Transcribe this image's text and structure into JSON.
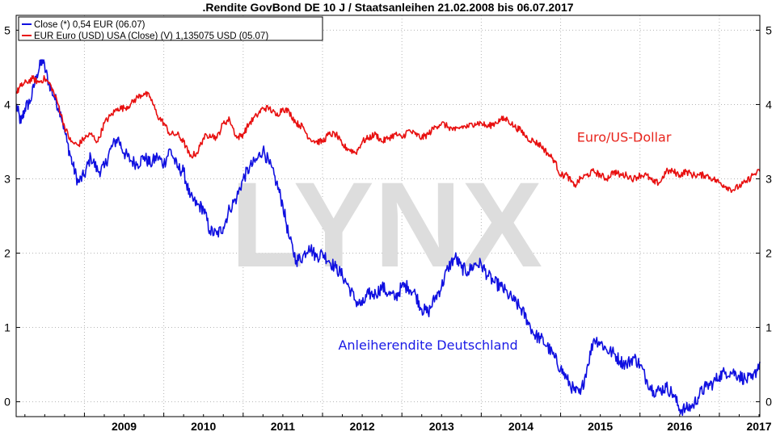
{
  "chart_data": {
    "type": "line",
    "title": ".Rendite GovBond DE 10 J / Staatsanleihen 21.02.2008 bis 06.07.2017",
    "xlim": [
      2008.14,
      2017.51
    ],
    "ylim": [
      -0.2,
      5.2
    ],
    "grid": true,
    "legend_position": "top-left",
    "x_tick_labels": [
      "2009",
      "2010",
      "2011",
      "2012",
      "2013",
      "2014",
      "2015",
      "2016",
      "2017"
    ],
    "x_tick_values": [
      2009,
      2010,
      2011,
      2012,
      2013,
      2014,
      2015,
      2016,
      2017
    ],
    "y_tick_labels": [
      "0",
      "1",
      "2",
      "3",
      "4",
      "5"
    ],
    "y_tick_values": [
      0,
      1,
      2,
      3,
      4,
      5
    ],
    "watermark": "LYNX",
    "annotations": [
      {
        "text": "Euro/US-Dollar",
        "color": "#e8241c",
        "x": 2015.8,
        "y": 3.5
      },
      {
        "text": "Anleiherendite Deutschland",
        "color": "#1a1ae6",
        "x": 2013.33,
        "y": 0.7
      }
    ],
    "series": [
      {
        "name": "Close (*) 0,54 EUR (06.07)",
        "color": "#1010e0",
        "x": [
          2008.14,
          2008.2,
          2008.25,
          2008.32,
          2008.4,
          2008.47,
          2008.55,
          2008.62,
          2008.7,
          2008.78,
          2008.85,
          2008.92,
          2009.0,
          2009.08,
          2009.17,
          2009.25,
          2009.33,
          2009.42,
          2009.5,
          2009.58,
          2009.67,
          2009.75,
          2009.83,
          2009.92,
          2010.0,
          2010.08,
          2010.17,
          2010.25,
          2010.33,
          2010.42,
          2010.5,
          2010.58,
          2010.67,
          2010.75,
          2010.83,
          2010.92,
          2011.0,
          2011.08,
          2011.17,
          2011.25,
          2011.33,
          2011.42,
          2011.5,
          2011.58,
          2011.67,
          2011.75,
          2011.83,
          2011.92,
          2012.0,
          2012.08,
          2012.17,
          2012.25,
          2012.33,
          2012.42,
          2012.5,
          2012.58,
          2012.67,
          2012.75,
          2012.83,
          2012.92,
          2013.0,
          2013.08,
          2013.17,
          2013.25,
          2013.33,
          2013.42,
          2013.5,
          2013.58,
          2013.67,
          2013.75,
          2013.83,
          2013.92,
          2014.0,
          2014.08,
          2014.17,
          2014.25,
          2014.33,
          2014.42,
          2014.5,
          2014.58,
          2014.67,
          2014.75,
          2014.83,
          2014.92,
          2015.0,
          2015.08,
          2015.17,
          2015.25,
          2015.33,
          2015.42,
          2015.5,
          2015.58,
          2015.67,
          2015.75,
          2015.83,
          2015.92,
          2016.0,
          2016.08,
          2016.17,
          2016.25,
          2016.33,
          2016.42,
          2016.5,
          2016.58,
          2016.67,
          2016.75,
          2016.83,
          2016.92,
          2017.0,
          2017.08,
          2017.17,
          2017.25,
          2017.33,
          2017.42,
          2017.51
        ],
        "values": [
          4.0,
          3.75,
          3.95,
          4.05,
          4.4,
          4.6,
          4.3,
          4.1,
          3.9,
          3.5,
          3.2,
          2.95,
          3.05,
          3.3,
          3.1,
          3.15,
          3.4,
          3.55,
          3.35,
          3.25,
          3.2,
          3.3,
          3.2,
          3.3,
          3.2,
          3.4,
          3.15,
          3.1,
          2.75,
          2.65,
          2.6,
          2.3,
          2.25,
          2.35,
          2.6,
          2.75,
          3.0,
          3.15,
          3.25,
          3.4,
          3.2,
          2.95,
          2.65,
          2.2,
          1.9,
          1.95,
          2.1,
          1.95,
          2.0,
          1.9,
          1.8,
          1.7,
          1.55,
          1.35,
          1.3,
          1.45,
          1.45,
          1.55,
          1.45,
          1.4,
          1.55,
          1.55,
          1.45,
          1.25,
          1.2,
          1.4,
          1.55,
          1.8,
          1.95,
          1.8,
          1.75,
          1.85,
          1.85,
          1.7,
          1.6,
          1.55,
          1.45,
          1.35,
          1.25,
          1.1,
          0.9,
          0.85,
          0.75,
          0.6,
          0.45,
          0.3,
          0.15,
          0.1,
          0.45,
          0.85,
          0.8,
          0.7,
          0.65,
          0.55,
          0.5,
          0.6,
          0.5,
          0.3,
          0.15,
          0.15,
          0.2,
          0.1,
          -0.1,
          -0.1,
          -0.05,
          0.1,
          0.2,
          0.25,
          0.35,
          0.4,
          0.4,
          0.35,
          0.3,
          0.3,
          0.54
        ]
      },
      {
        "name": "EUR Euro (USD) USA (Close) (V) 1,135075 USD (05.07)",
        "color": "#e81010",
        "x": [
          2008.14,
          2008.2,
          2008.27,
          2008.35,
          2008.42,
          2008.5,
          2008.58,
          2008.67,
          2008.75,
          2008.83,
          2008.92,
          2009.0,
          2009.08,
          2009.17,
          2009.25,
          2009.33,
          2009.42,
          2009.5,
          2009.58,
          2009.67,
          2009.75,
          2009.83,
          2009.92,
          2010.0,
          2010.08,
          2010.17,
          2010.25,
          2010.33,
          2010.42,
          2010.5,
          2010.58,
          2010.67,
          2010.75,
          2010.83,
          2010.92,
          2011.0,
          2011.08,
          2011.17,
          2011.25,
          2011.33,
          2011.42,
          2011.5,
          2011.58,
          2011.67,
          2011.75,
          2011.83,
          2011.92,
          2012.0,
          2012.08,
          2012.17,
          2012.25,
          2012.33,
          2012.42,
          2012.5,
          2012.58,
          2012.67,
          2012.75,
          2012.83,
          2012.92,
          2013.0,
          2013.08,
          2013.17,
          2013.25,
          2013.33,
          2013.42,
          2013.5,
          2013.58,
          2013.67,
          2013.75,
          2013.83,
          2013.92,
          2014.0,
          2014.08,
          2014.17,
          2014.25,
          2014.33,
          2014.42,
          2014.5,
          2014.58,
          2014.67,
          2014.75,
          2014.83,
          2014.92,
          2015.0,
          2015.08,
          2015.17,
          2015.25,
          2015.33,
          2015.42,
          2015.5,
          2015.58,
          2015.67,
          2015.75,
          2015.83,
          2015.92,
          2016.0,
          2016.08,
          2016.17,
          2016.25,
          2016.33,
          2016.42,
          2016.5,
          2016.58,
          2016.67,
          2016.75,
          2016.83,
          2016.92,
          2017.0,
          2017.08,
          2017.17,
          2017.25,
          2017.33,
          2017.42,
          2017.51
        ],
        "values": [
          4.15,
          4.25,
          4.3,
          4.35,
          4.3,
          4.35,
          4.25,
          4.0,
          3.7,
          3.5,
          3.45,
          3.55,
          3.6,
          3.5,
          3.75,
          3.85,
          3.95,
          3.95,
          4.0,
          4.1,
          4.15,
          4.1,
          3.85,
          3.75,
          3.6,
          3.6,
          3.5,
          3.3,
          3.35,
          3.55,
          3.6,
          3.55,
          3.75,
          3.8,
          3.55,
          3.6,
          3.75,
          3.85,
          3.95,
          3.95,
          3.85,
          3.95,
          3.9,
          3.75,
          3.7,
          3.55,
          3.5,
          3.5,
          3.6,
          3.6,
          3.45,
          3.4,
          3.35,
          3.5,
          3.55,
          3.6,
          3.5,
          3.55,
          3.6,
          3.55,
          3.65,
          3.6,
          3.55,
          3.6,
          3.7,
          3.75,
          3.7,
          3.65,
          3.7,
          3.7,
          3.75,
          3.75,
          3.7,
          3.75,
          3.8,
          3.8,
          3.7,
          3.65,
          3.55,
          3.5,
          3.45,
          3.35,
          3.25,
          3.05,
          3.05,
          2.9,
          3.0,
          3.05,
          3.1,
          3.05,
          3.0,
          3.1,
          3.05,
          3.05,
          3.0,
          3.05,
          3.05,
          2.95,
          2.95,
          3.1,
          3.1,
          3.05,
          3.1,
          3.05,
          3.05,
          3.05,
          3.0,
          2.95,
          2.9,
          2.85,
          2.9,
          2.95,
          3.05,
          3.1
        ]
      }
    ]
  }
}
